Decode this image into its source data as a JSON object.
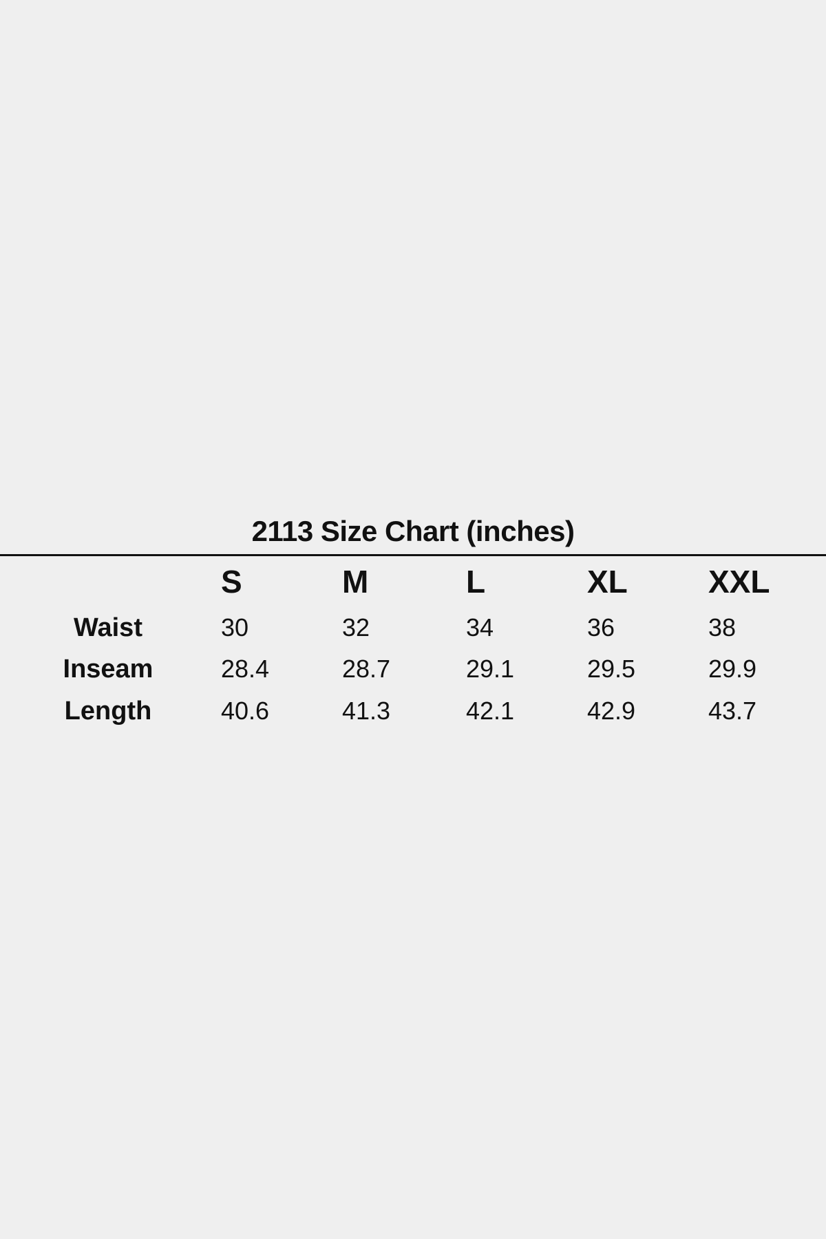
{
  "title": "2113 Size Chart (inches)",
  "sizes": [
    "S",
    "M",
    "L",
    "XL",
    "XXL"
  ],
  "rows": [
    {
      "label": "Waist",
      "values": [
        "30",
        "32",
        "34",
        "36",
        "38"
      ]
    },
    {
      "label": "Inseam",
      "values": [
        "28.4",
        "28.7",
        "29.1",
        "29.5",
        "29.9"
      ]
    },
    {
      "label": "Length",
      "values": [
        "40.6",
        "41.3",
        "42.1",
        "42.9",
        "43.7"
      ]
    }
  ],
  "colors": {
    "background": "#efefef",
    "text": "#111111"
  }
}
